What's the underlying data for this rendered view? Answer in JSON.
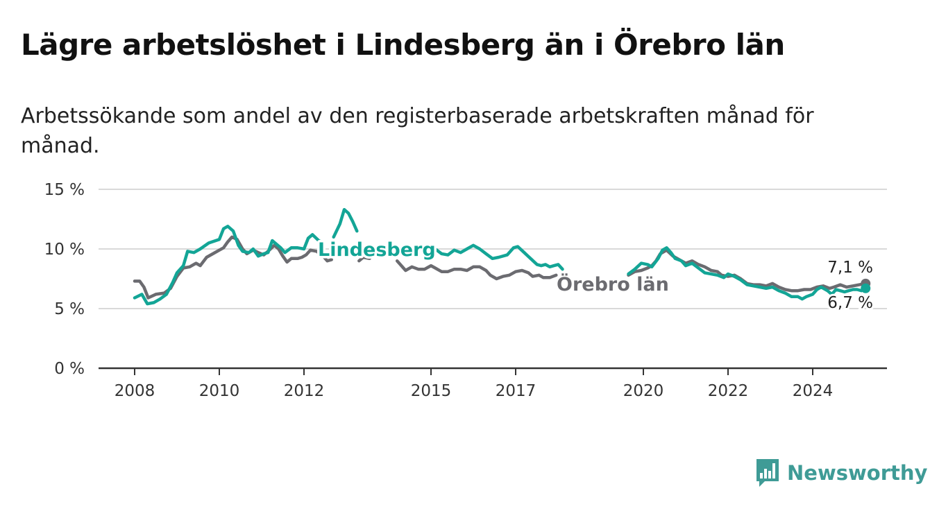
{
  "title": "Lägre arbetslöshet i Lindesberg än i Örebro län",
  "subtitle": "Arbetssökande som andel av den registerbaserade arbetskraften månad för månad.",
  "brand": {
    "name": "Newsworthy",
    "color": "#3f9b96",
    "icon": "newsworthy-chart-icon"
  },
  "chart_data": {
    "type": "line",
    "title": "Lägre arbetslöshet i Lindesberg än i Örebro län",
    "xlabel": "",
    "ylabel": "",
    "ylim": [
      0,
      15
    ],
    "yticks": [
      0,
      5,
      10,
      15
    ],
    "ytick_labels": [
      "0 %",
      "5 %",
      "10 %",
      "15 %"
    ],
    "xlim": [
      2007.5,
      2025.75
    ],
    "xticks": [
      2008,
      2010,
      2012,
      2015,
      2017,
      2020,
      2022,
      2024
    ],
    "xtick_labels": [
      "2008",
      "2010",
      "2012",
      "2015",
      "2017",
      "2020",
      "2022",
      "2024"
    ],
    "grid": true,
    "legend": "inline labels",
    "series": [
      {
        "name": "Lindesberg",
        "color": "#13a596",
        "label_text": "Lindesberg",
        "end_label": "6,7 %",
        "segments": [
          [
            [
              2008.0,
              5.9
            ],
            [
              2008.17,
              6.2
            ],
            [
              2008.3,
              5.4
            ],
            [
              2008.45,
              5.5
            ],
            [
              2008.6,
              5.8
            ],
            [
              2008.75,
              6.2
            ],
            [
              2008.9,
              7.2
            ],
            [
              2009.0,
              8.0
            ],
            [
              2009.15,
              8.6
            ],
            [
              2009.25,
              9.8
            ],
            [
              2009.4,
              9.7
            ],
            [
              2009.55,
              10.0
            ],
            [
              2009.75,
              10.5
            ],
            [
              2010.0,
              10.8
            ],
            [
              2010.1,
              11.7
            ],
            [
              2010.2,
              11.9
            ],
            [
              2010.33,
              11.5
            ],
            [
              2010.45,
              10.3
            ],
            [
              2010.55,
              9.8
            ],
            [
              2010.7,
              9.7
            ],
            [
              2010.8,
              10.0
            ],
            [
              2010.92,
              9.4
            ],
            [
              2011.05,
              9.6
            ],
            [
              2011.15,
              9.7
            ],
            [
              2011.25,
              10.7
            ],
            [
              2011.35,
              10.4
            ],
            [
              2011.45,
              10.1
            ],
            [
              2011.55,
              9.7
            ],
            [
              2011.7,
              10.1
            ],
            [
              2011.85,
              10.1
            ],
            [
              2012.0,
              10.0
            ],
            [
              2012.1,
              10.9
            ],
            [
              2012.2,
              11.2
            ],
            [
              2012.35,
              10.7
            ],
            [
              2012.45,
              10.5
            ]
          ],
          [
            [
              2012.7,
              11.0
            ],
            [
              2012.85,
              12.1
            ],
            [
              2012.95,
              13.3
            ],
            [
              2013.05,
              13.0
            ],
            [
              2013.15,
              12.3
            ],
            [
              2013.25,
              11.5
            ]
          ],
          [
            [
              2014.05,
              10.1
            ],
            [
              2014.2,
              10.0
            ],
            [
              2014.35,
              9.8
            ],
            [
              2014.5,
              10.2
            ]
          ],
          [
            [
              2015.1,
              10.0
            ],
            [
              2015.25,
              9.6
            ],
            [
              2015.4,
              9.5
            ],
            [
              2015.55,
              9.9
            ],
            [
              2015.7,
              9.7
            ],
            [
              2015.85,
              10.0
            ],
            [
              2016.0,
              10.3
            ],
            [
              2016.15,
              10.0
            ],
            [
              2016.3,
              9.6
            ],
            [
              2016.45,
              9.2
            ],
            [
              2016.6,
              9.3
            ],
            [
              2016.8,
              9.5
            ],
            [
              2016.95,
              10.1
            ],
            [
              2017.05,
              10.2
            ],
            [
              2017.2,
              9.7
            ],
            [
              2017.35,
              9.2
            ],
            [
              2017.5,
              8.7
            ],
            [
              2017.6,
              8.6
            ],
            [
              2017.7,
              8.7
            ],
            [
              2017.8,
              8.5
            ],
            [
              2017.9,
              8.6
            ],
            [
              2018.0,
              8.7
            ],
            [
              2018.1,
              8.3
            ]
          ],
          [
            [
              2019.65,
              7.9
            ],
            [
              2019.8,
              8.3
            ],
            [
              2019.95,
              8.8
            ],
            [
              2020.1,
              8.7
            ],
            [
              2020.2,
              8.5
            ],
            [
              2020.35,
              9.2
            ],
            [
              2020.45,
              9.9
            ],
            [
              2020.55,
              10.1
            ],
            [
              2020.65,
              9.7
            ],
            [
              2020.75,
              9.2
            ],
            [
              2020.9,
              9.0
            ],
            [
              2021.0,
              8.6
            ],
            [
              2021.15,
              8.8
            ],
            [
              2021.3,
              8.4
            ],
            [
              2021.45,
              8.0
            ],
            [
              2021.6,
              7.9
            ],
            [
              2021.75,
              7.8
            ],
            [
              2021.9,
              7.6
            ],
            [
              2022.0,
              7.9
            ],
            [
              2022.15,
              7.7
            ],
            [
              2022.3,
              7.4
            ],
            [
              2022.45,
              7.0
            ],
            [
              2022.6,
              6.9
            ],
            [
              2022.75,
              6.8
            ],
            [
              2022.9,
              6.7
            ],
            [
              2023.05,
              6.8
            ],
            [
              2023.2,
              6.5
            ],
            [
              2023.35,
              6.3
            ],
            [
              2023.5,
              6.0
            ],
            [
              2023.65,
              6.0
            ],
            [
              2023.75,
              5.8
            ],
            [
              2023.85,
              6.0
            ],
            [
              2024.0,
              6.2
            ],
            [
              2024.1,
              6.6
            ],
            [
              2024.2,
              6.8
            ],
            [
              2024.35,
              6.5
            ],
            [
              2024.45,
              6.2
            ],
            [
              2024.55,
              6.6
            ],
            [
              2024.65,
              6.5
            ],
            [
              2024.75,
              6.4
            ],
            [
              2024.85,
              6.5
            ],
            [
              2024.95,
              6.6
            ],
            [
              2025.05,
              6.6
            ],
            [
              2025.15,
              6.5
            ],
            [
              2025.25,
              6.7
            ]
          ]
        ]
      },
      {
        "name": "Örebro län",
        "color": "#6b6b70",
        "label_text": "Örebro län",
        "end_label": "7,1 %",
        "segments": [
          [
            [
              2008.0,
              7.3
            ],
            [
              2008.12,
              7.3
            ],
            [
              2008.22,
              6.8
            ],
            [
              2008.32,
              5.9
            ],
            [
              2008.5,
              6.2
            ],
            [
              2008.7,
              6.3
            ],
            [
              2008.85,
              6.7
            ],
            [
              2009.0,
              7.7
            ],
            [
              2009.15,
              8.4
            ],
            [
              2009.3,
              8.5
            ],
            [
              2009.45,
              8.8
            ],
            [
              2009.55,
              8.6
            ],
            [
              2009.7,
              9.3
            ],
            [
              2009.85,
              9.6
            ],
            [
              2010.0,
              9.9
            ],
            [
              2010.1,
              10.1
            ],
            [
              2010.2,
              10.6
            ],
            [
              2010.3,
              11.0
            ],
            [
              2010.42,
              10.8
            ],
            [
              2010.55,
              10.0
            ],
            [
              2010.65,
              9.6
            ],
            [
              2010.8,
              9.9
            ],
            [
              2010.92,
              9.7
            ],
            [
              2011.05,
              9.5
            ],
            [
              2011.15,
              9.8
            ],
            [
              2011.3,
              10.3
            ],
            [
              2011.4,
              10.0
            ],
            [
              2011.5,
              9.4
            ],
            [
              2011.6,
              8.9
            ],
            [
              2011.7,
              9.2
            ],
            [
              2011.85,
              9.2
            ],
            [
              2011.95,
              9.3
            ],
            [
              2012.05,
              9.5
            ],
            [
              2012.15,
              9.9
            ],
            [
              2012.3,
              9.8
            ],
            [
              2012.45,
              9.4
            ],
            [
              2012.55,
              9.0
            ],
            [
              2012.65,
              9.1
            ]
          ],
          [
            [
              2013.3,
              9.0
            ],
            [
              2013.4,
              9.3
            ],
            [
              2013.55,
              9.2
            ]
          ],
          [
            [
              2014.2,
              9.0
            ],
            [
              2014.3,
              8.6
            ],
            [
              2014.4,
              8.2
            ],
            [
              2014.55,
              8.5
            ],
            [
              2014.7,
              8.3
            ],
            [
              2014.85,
              8.3
            ],
            [
              2015.0,
              8.6
            ],
            [
              2015.1,
              8.4
            ],
            [
              2015.25,
              8.1
            ],
            [
              2015.4,
              8.1
            ],
            [
              2015.55,
              8.3
            ],
            [
              2015.7,
              8.3
            ],
            [
              2015.85,
              8.2
            ],
            [
              2016.0,
              8.5
            ],
            [
              2016.15,
              8.5
            ],
            [
              2016.3,
              8.2
            ],
            [
              2016.4,
              7.8
            ],
            [
              2016.55,
              7.5
            ],
            [
              2016.7,
              7.7
            ],
            [
              2016.85,
              7.8
            ],
            [
              2017.0,
              8.1
            ],
            [
              2017.15,
              8.2
            ],
            [
              2017.3,
              8.0
            ],
            [
              2017.4,
              7.7
            ],
            [
              2017.55,
              7.8
            ],
            [
              2017.65,
              7.6
            ],
            [
              2017.8,
              7.6
            ],
            [
              2017.95,
              7.8
            ]
          ],
          [
            [
              2019.65,
              7.8
            ],
            [
              2019.8,
              8.1
            ],
            [
              2019.95,
              8.2
            ],
            [
              2020.1,
              8.4
            ],
            [
              2020.2,
              8.6
            ],
            [
              2020.3,
              9.0
            ],
            [
              2020.4,
              9.6
            ],
            [
              2020.55,
              9.9
            ],
            [
              2020.7,
              9.4
            ],
            [
              2020.85,
              9.1
            ],
            [
              2021.0,
              8.8
            ],
            [
              2021.15,
              9.0
            ],
            [
              2021.3,
              8.7
            ],
            [
              2021.45,
              8.5
            ],
            [
              2021.6,
              8.2
            ],
            [
              2021.75,
              8.1
            ],
            [
              2021.85,
              7.8
            ],
            [
              2022.0,
              7.7
            ],
            [
              2022.15,
              7.8
            ],
            [
              2022.3,
              7.5
            ],
            [
              2022.45,
              7.1
            ],
            [
              2022.6,
              7.0
            ],
            [
              2022.75,
              7.0
            ],
            [
              2022.9,
              6.9
            ],
            [
              2023.05,
              7.1
            ],
            [
              2023.2,
              6.8
            ],
            [
              2023.35,
              6.6
            ],
            [
              2023.5,
              6.5
            ],
            [
              2023.65,
              6.5
            ],
            [
              2023.8,
              6.6
            ],
            [
              2023.95,
              6.6
            ],
            [
              2024.1,
              6.8
            ],
            [
              2024.25,
              6.9
            ],
            [
              2024.4,
              6.7
            ],
            [
              2024.5,
              6.8
            ],
            [
              2024.65,
              7.0
            ],
            [
              2024.8,
              6.8
            ],
            [
              2024.95,
              6.9
            ],
            [
              2025.1,
              7.0
            ],
            [
              2025.25,
              7.1
            ]
          ]
        ]
      }
    ]
  }
}
